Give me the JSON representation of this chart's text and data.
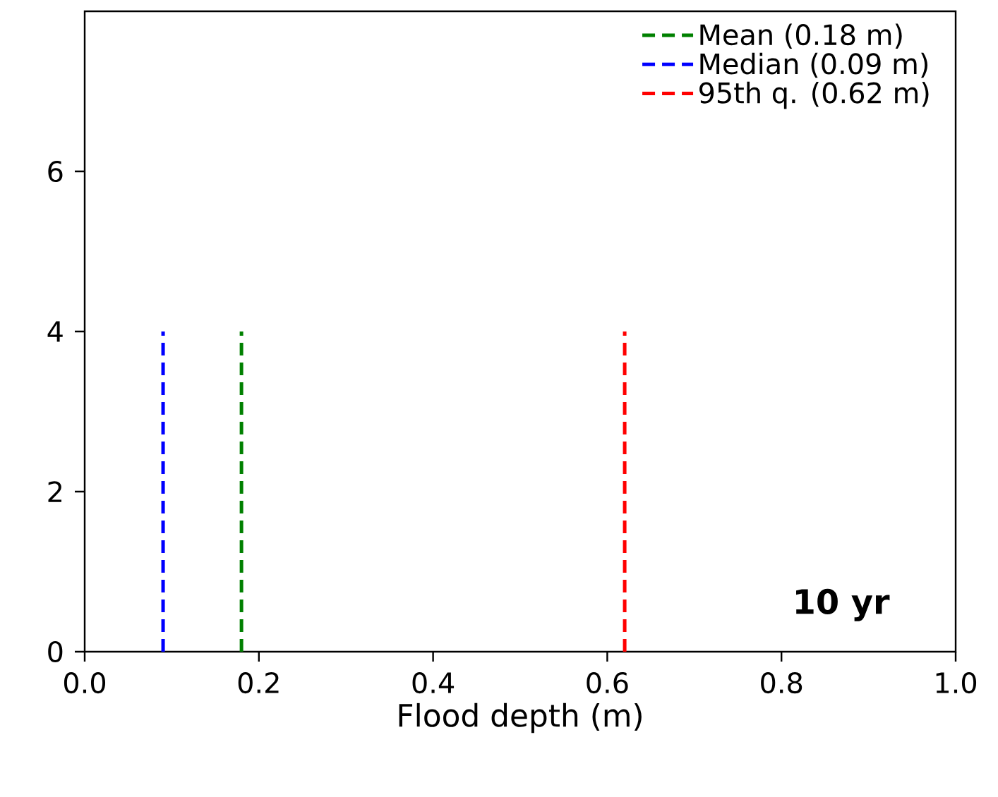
{
  "chart_data": {
    "type": "line",
    "xlabel": "Flood depth (m)",
    "xlim": [
      0,
      1
    ],
    "ylim": [
      0,
      8
    ],
    "xticks": [
      {
        "value": 0,
        "label": "0.0"
      },
      {
        "value": 0.2,
        "label": "0.2"
      },
      {
        "value": 0.4,
        "label": "0.4"
      },
      {
        "value": 0.6,
        "label": "0.6"
      },
      {
        "value": 0.8,
        "label": "0.8"
      },
      {
        "value": 1,
        "label": "1.0"
      }
    ],
    "yticks": [
      0,
      2,
      4,
      6
    ],
    "series": [
      {
        "name": "Mean (0.18 m)",
        "color": "#008000",
        "x": [
          0.18,
          0.18
        ],
        "values": [
          0,
          4
        ]
      },
      {
        "name": "Median (0.09 m)",
        "color": "#0000ff",
        "x": [
          0.09,
          0.09
        ],
        "values": [
          0,
          4
        ]
      },
      {
        "name": "95th q. (0.62 m)",
        "color": "#ff0000",
        "x": [
          0.62,
          0.62
        ],
        "values": [
          0,
          4
        ]
      }
    ],
    "line_style": "dashed",
    "marker": "none",
    "legend": "top right",
    "annotations": [
      "10 yr"
    ]
  }
}
